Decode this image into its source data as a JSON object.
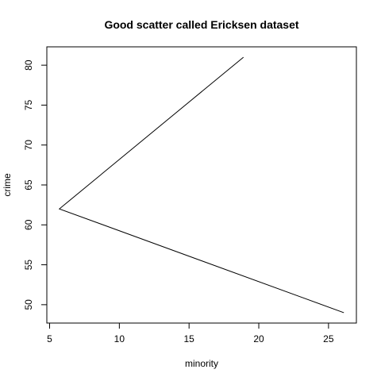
{
  "chart_data": {
    "type": "line",
    "title": "Good scatter called Ericksen dataset",
    "xlabel": "minority",
    "ylabel": "crime",
    "x": [
      18.9,
      5.7,
      26.1
    ],
    "y": [
      81,
      62,
      49
    ],
    "xlim": [
      4.8,
      27.0
    ],
    "ylim": [
      47.7,
      82.3
    ],
    "xticks": [
      5,
      10,
      15,
      20,
      25
    ],
    "yticks": [
      50,
      55,
      60,
      65,
      70,
      75,
      80
    ],
    "grid": false,
    "line_color": "#000000"
  }
}
